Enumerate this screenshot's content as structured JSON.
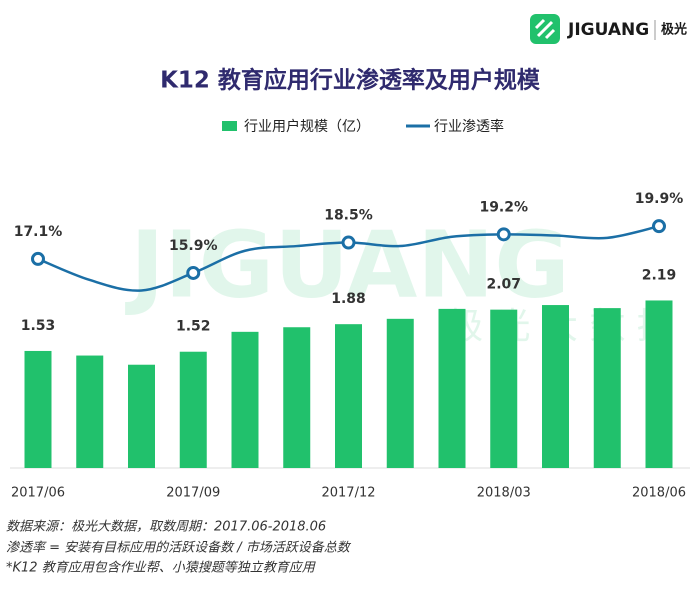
{
  "brand": {
    "name": "JIGUANG",
    "cn": "极光"
  },
  "watermark": {
    "main": "JIGUANG",
    "sub": "极 光 大 数 据"
  },
  "chart_data": {
    "type": "bar-line",
    "title": "K12 教育应用行业渗透率及用户规模",
    "categories": [
      "2017/06",
      null,
      null,
      "2017/09",
      null,
      null,
      "2017/12",
      null,
      null,
      "2018/03",
      null,
      null,
      "2018/06"
    ],
    "series": [
      {
        "name": "行业用户规模（亿）",
        "type": "bar",
        "color": "#21c16c",
        "values": [
          1.53,
          1.47,
          1.35,
          1.52,
          1.78,
          1.84,
          1.88,
          1.95,
          2.08,
          2.07,
          2.13,
          2.09,
          2.19
        ],
        "value_labels": [
          "1.53",
          null,
          null,
          "1.52",
          null,
          null,
          "1.88",
          null,
          null,
          "2.07",
          null,
          null,
          "2.19"
        ]
      },
      {
        "name": "行业渗透率",
        "type": "line",
        "axis": "y2",
        "color": "#1b6fa6",
        "values": [
          17.1,
          15.3,
          14.4,
          15.9,
          17.8,
          18.2,
          18.5,
          18.2,
          19.0,
          19.2,
          19.1,
          18.9,
          19.9
        ],
        "value_labels": [
          "17.1%",
          null,
          null,
          "15.9%",
          null,
          null,
          "18.5%",
          null,
          null,
          "19.2%",
          null,
          null,
          "19.9%"
        ]
      }
    ],
    "notes": [
      "数据来源：极光大数据，取数周期：2017.06-2018.06",
      "渗透率 = 安装有目标应用的活跃设备数 / 市场活跃设备总数",
      "*K12 教育应用包含作业帮、小猿搜题等独立教育应用"
    ]
  }
}
